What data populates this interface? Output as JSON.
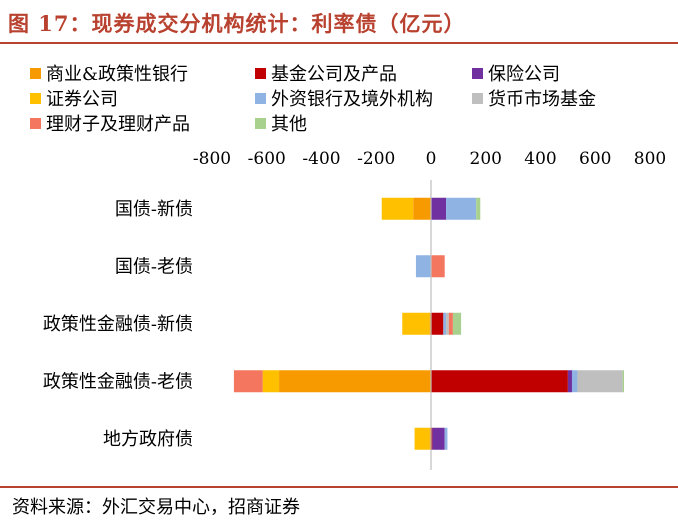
{
  "header": {
    "title": "图 17：现券成交分机构统计：利率债（亿元）"
  },
  "footer": {
    "source": "资料来源：外汇交易中心，招商证券"
  },
  "chart_data": {
    "type": "bar",
    "orientation": "horizontal",
    "stacked": true,
    "title": "图 17：现券成交分机构统计：利率债（亿元）",
    "xlim": [
      -800,
      800
    ],
    "xticks": [
      -800,
      -600,
      -400,
      -200,
      0,
      200,
      400,
      600,
      800
    ],
    "x_axis_position": "top",
    "grid": false,
    "legend_position": "top",
    "categories": [
      "国债-新债",
      "国债-老债",
      "政策性金融债-新债",
      "政策性金融债-老债",
      "地方政府债"
    ],
    "series": [
      {
        "name": "商业&政策性银行",
        "color": "#f79a00",
        "values": [
          -65,
          0,
          -5,
          -555,
          -5
        ]
      },
      {
        "name": "基金公司及产品",
        "color": "#c00000",
        "values": [
          0,
          0,
          45,
          500,
          5
        ]
      },
      {
        "name": "保险公司",
        "color": "#7030a0",
        "values": [
          55,
          0,
          0,
          15,
          45
        ]
      },
      {
        "name": "证券公司",
        "color": "#ffc000",
        "values": [
          -115,
          0,
          -100,
          -60,
          -55
        ]
      },
      {
        "name": "外资银行及境外机构",
        "color": "#8fb4e3",
        "values": [
          110,
          -55,
          10,
          20,
          10
        ]
      },
      {
        "name": "货币市场基金",
        "color": "#bfbfbf",
        "values": [
          0,
          0,
          10,
          165,
          0
        ]
      },
      {
        "name": "理财子及理财产品",
        "color": "#f4765e",
        "values": [
          0,
          50,
          15,
          -105,
          0
        ]
      },
      {
        "name": "其他",
        "color": "#a9d18e",
        "values": [
          15,
          0,
          30,
          5,
          0
        ]
      }
    ]
  }
}
